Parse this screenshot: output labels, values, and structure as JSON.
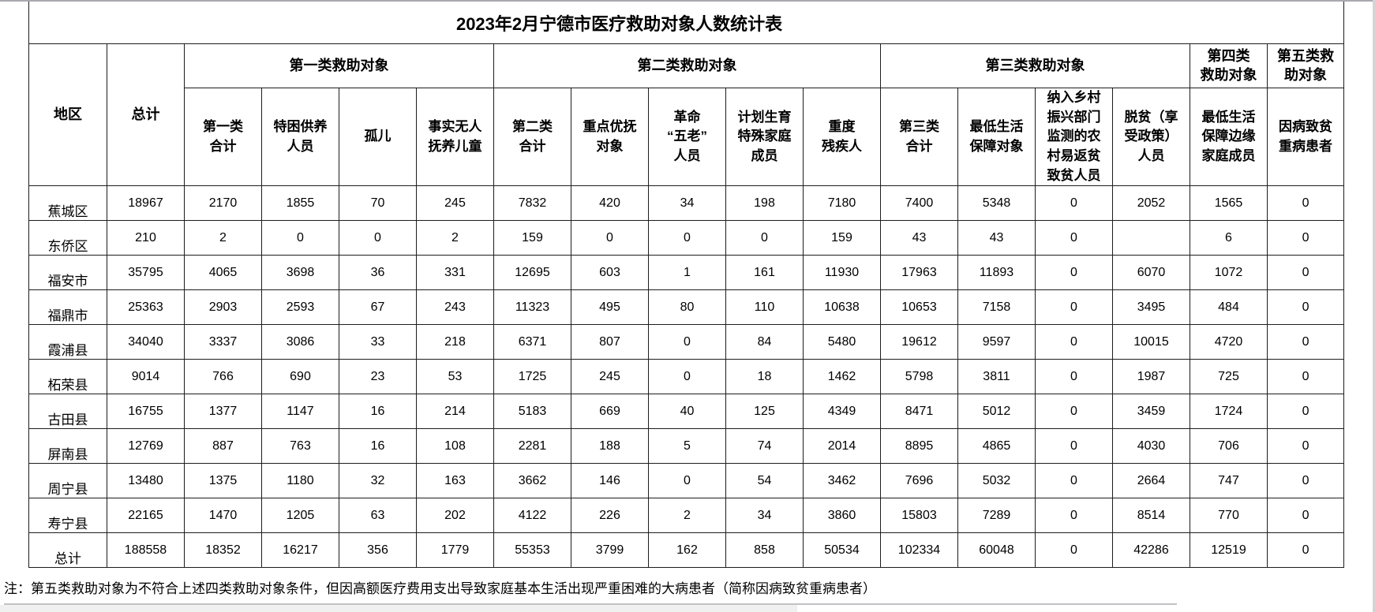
{
  "title": "2023年2月宁德市医疗救助对象人数统计表",
  "table": {
    "region_header": "地区",
    "total_header": "总计",
    "groups": [
      {
        "label": "第一类救助对象",
        "span": 4
      },
      {
        "label": "第二类救助对象",
        "span": 5
      },
      {
        "label": "第三类救助对象",
        "span": 4
      },
      {
        "label": "第四类\n救助对象",
        "span": 1
      },
      {
        "label": "第五类救\n助对象",
        "span": 1
      }
    ],
    "sub_headers": [
      "第一类\n合计",
      "特困供养\n人员",
      "孤儿",
      "事实无人\n抚养儿童",
      "第二类\n合计",
      "重点优抚\n对象",
      "革命\n“五老”\n人员",
      "计划生育\n特殊家庭\n成员",
      "重度\n残疾人",
      "第三类\n合计",
      "最低生活\n保障对象",
      "纳入乡村\n振兴部门\n监测的农\n村易返贫\n致贫人员",
      "脱贫（享\n受政策）\n人员",
      "最低生活\n保障边缘\n家庭成员",
      "因病致贫\n重病患者"
    ],
    "rows": [
      {
        "region": "蕉城区",
        "values": [
          "18967",
          "2170",
          "1855",
          "70",
          "245",
          "7832",
          "420",
          "34",
          "198",
          "7180",
          "7400",
          "5348",
          "0",
          "2052",
          "1565",
          "0"
        ]
      },
      {
        "region": "东侨区",
        "values": [
          "210",
          "2",
          "0",
          "0",
          "2",
          "159",
          "0",
          "0",
          "0",
          "159",
          "43",
          "43",
          "0",
          "",
          "6",
          "0"
        ]
      },
      {
        "region": "福安市",
        "values": [
          "35795",
          "4065",
          "3698",
          "36",
          "331",
          "12695",
          "603",
          "1",
          "161",
          "11930",
          "17963",
          "11893",
          "0",
          "6070",
          "1072",
          "0"
        ]
      },
      {
        "region": "福鼎市",
        "values": [
          "25363",
          "2903",
          "2593",
          "67",
          "243",
          "11323",
          "495",
          "80",
          "110",
          "10638",
          "10653",
          "7158",
          "0",
          "3495",
          "484",
          "0"
        ]
      },
      {
        "region": "霞浦县",
        "values": [
          "34040",
          "3337",
          "3086",
          "33",
          "218",
          "6371",
          "807",
          "0",
          "84",
          "5480",
          "19612",
          "9597",
          "0",
          "10015",
          "4720",
          "0"
        ]
      },
      {
        "region": "柘荣县",
        "values": [
          "9014",
          "766",
          "690",
          "23",
          "53",
          "1725",
          "245",
          "0",
          "18",
          "1462",
          "5798",
          "3811",
          "0",
          "1987",
          "725",
          "0"
        ]
      },
      {
        "region": "古田县",
        "values": [
          "16755",
          "1377",
          "1147",
          "16",
          "214",
          "5183",
          "669",
          "40",
          "125",
          "4349",
          "8471",
          "5012",
          "0",
          "3459",
          "1724",
          "0"
        ]
      },
      {
        "region": "屏南县",
        "values": [
          "12769",
          "887",
          "763",
          "16",
          "108",
          "2281",
          "188",
          "5",
          "74",
          "2014",
          "8895",
          "4865",
          "0",
          "4030",
          "706",
          "0"
        ]
      },
      {
        "region": "周宁县",
        "values": [
          "13480",
          "1375",
          "1180",
          "32",
          "163",
          "3662",
          "146",
          "0",
          "54",
          "3462",
          "7696",
          "5032",
          "0",
          "2664",
          "747",
          "0"
        ]
      },
      {
        "region": "寿宁县",
        "values": [
          "22165",
          "1470",
          "1205",
          "63",
          "202",
          "4122",
          "226",
          "2",
          "34",
          "3860",
          "15803",
          "7289",
          "0",
          "8514",
          "770",
          "0"
        ]
      },
      {
        "region": "总计",
        "values": [
          "188558",
          "18352",
          "16217",
          "356",
          "1779",
          "55353",
          "3799",
          "162",
          "858",
          "50534",
          "102334",
          "60048",
          "0",
          "42286",
          "12519",
          "0"
        ]
      }
    ]
  },
  "note": "注：第五类救助对象为不符合上述四类救助对象条件，但因高额医疗费用支出导致家庭基本生活出现严重困难的大病患者（简称因病致贫重病患者）"
}
